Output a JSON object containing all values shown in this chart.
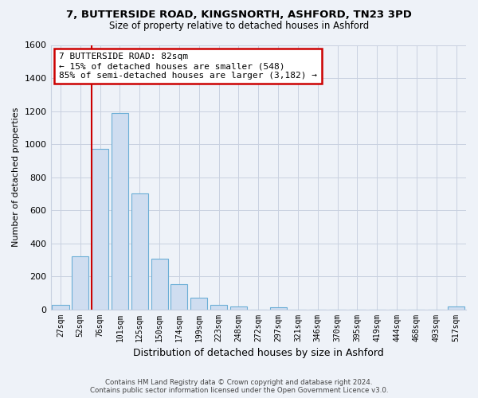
{
  "title1": "7, BUTTERSIDE ROAD, KINGSNORTH, ASHFORD, TN23 3PD",
  "title2": "Size of property relative to detached houses in Ashford",
  "xlabel": "Distribution of detached houses by size in Ashford",
  "ylabel": "Number of detached properties",
  "bar_labels": [
    "27sqm",
    "52sqm",
    "76sqm",
    "101sqm",
    "125sqm",
    "150sqm",
    "174sqm",
    "199sqm",
    "223sqm",
    "248sqm",
    "272sqm",
    "297sqm",
    "321sqm",
    "346sqm",
    "370sqm",
    "395sqm",
    "419sqm",
    "444sqm",
    "468sqm",
    "493sqm",
    "517sqm"
  ],
  "bar_values": [
    25,
    320,
    970,
    1190,
    700,
    305,
    150,
    70,
    25,
    15,
    0,
    10,
    0,
    0,
    0,
    0,
    0,
    0,
    0,
    0,
    15
  ],
  "bar_color": "#cfddf0",
  "bar_edge_color": "#6baed6",
  "ylim": [
    0,
    1600
  ],
  "yticks": [
    0,
    200,
    400,
    600,
    800,
    1000,
    1200,
    1400,
    1600
  ],
  "vline_index": 2,
  "vline_color": "#cc0000",
  "annotation_title": "7 BUTTERSIDE ROAD: 82sqm",
  "annotation_line1": "← 15% of detached houses are smaller (548)",
  "annotation_line2": "85% of semi-detached houses are larger (3,182) →",
  "annotation_box_color": "#ffffff",
  "annotation_box_edge": "#cc0000",
  "footer1": "Contains HM Land Registry data © Crown copyright and database right 2024.",
  "footer2": "Contains public sector information licensed under the Open Government Licence v3.0.",
  "bg_color": "#eef2f8",
  "plot_bg_color": "#eef2f8",
  "grid_color": "#c8d0e0"
}
